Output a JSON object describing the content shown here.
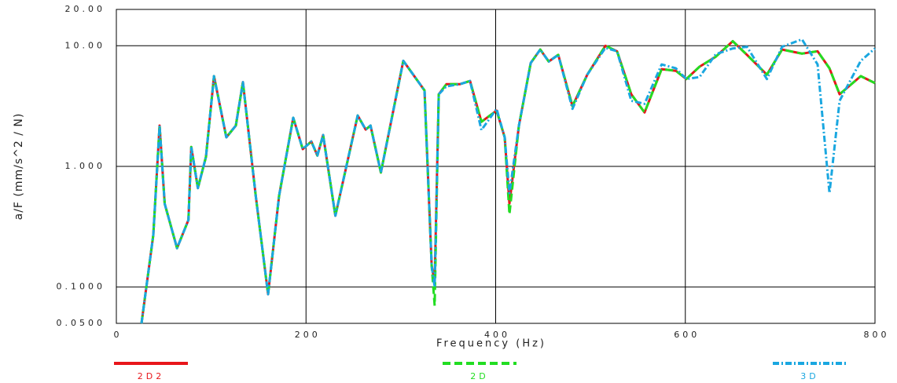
{
  "chart_data": {
    "type": "line",
    "xlabel": "Frequency (Hz)",
    "ylabel": "a/F (mm/s^2 / N)",
    "log_y": true,
    "grid": true,
    "legend": "bottom",
    "xlim": [
      0,
      800
    ],
    "xticks": [
      0,
      200,
      400,
      600,
      800
    ],
    "ylim": [
      0.05,
      20
    ],
    "yticks": [
      {
        "value": 0.05,
        "label": "0.0500"
      },
      {
        "value": 0.1,
        "label": "0.1000"
      },
      {
        "value": 1,
        "label": "1.000"
      },
      {
        "value": 10,
        "label": "10.00"
      },
      {
        "value": 20,
        "label": "20.00"
      }
    ],
    "x": [
      26.5,
      39,
      45.6,
      51,
      64,
      76,
      79,
      86,
      94.5,
      103,
      116,
      126,
      133.5,
      147,
      160,
      171.6,
      186.5,
      196.6,
      205.6,
      212,
      218,
      231,
      254.5,
      263,
      268,
      279,
      302.6,
      325,
      332.5,
      335.7,
      340,
      348,
      362,
      373,
      385,
      401,
      409.5,
      414.5,
      424.5,
      437,
      447,
      456,
      466,
      481,
      496.6,
      515.7,
      528,
      543,
      557,
      575,
      590,
      601,
      615,
      632,
      650,
      665,
      686,
      702,
      723,
      739.5,
      752,
      762.7,
      785,
      800
    ],
    "series": [
      {
        "name": "2D2",
        "color": "#e8161b",
        "dash": "none",
        "values": [
          0.05,
          0.27,
          2.18,
          0.49,
          0.21,
          0.36,
          1.45,
          0.66,
          1.2,
          5.6,
          1.74,
          2.18,
          5.0,
          0.57,
          0.087,
          0.57,
          2.53,
          1.39,
          1.61,
          1.23,
          1.82,
          0.39,
          2.64,
          2.02,
          2.18,
          0.89,
          7.5,
          4.26,
          0.15,
          0.11,
          3.96,
          4.8,
          4.8,
          5.1,
          2.34,
          2.9,
          1.74,
          0.49,
          2.18,
          7.2,
          9.3,
          7.4,
          8.4,
          3.16,
          5.75,
          10,
          9,
          3.96,
          2.8,
          6.4,
          6.2,
          5.3,
          6.7,
          8.1,
          10.9,
          8.4,
          5.75,
          9.3,
          8.6,
          9,
          6.5,
          3.96,
          5.6,
          4.9
        ]
      },
      {
        "name": "2D",
        "color": "#22dd22",
        "dash": "10,5",
        "values": [
          0.05,
          0.27,
          2.18,
          0.49,
          0.21,
          0.36,
          1.45,
          0.66,
          1.2,
          5.6,
          1.74,
          2.18,
          5.0,
          0.57,
          0.087,
          0.57,
          2.53,
          1.39,
          1.61,
          1.23,
          1.82,
          0.39,
          2.64,
          2.02,
          2.18,
          0.89,
          7.5,
          4.26,
          0.15,
          0.07,
          3.96,
          4.8,
          4.8,
          5.1,
          2.34,
          2.9,
          1.74,
          0.4,
          2.18,
          7.2,
          9.3,
          7.4,
          8.4,
          3.16,
          5.75,
          10,
          9,
          3.96,
          2.8,
          6.4,
          6.2,
          5.3,
          6.7,
          8.1,
          10.9,
          8.4,
          5.75,
          9.3,
          8.6,
          9,
          6.5,
          3.96,
          5.6,
          4.9
        ]
      },
      {
        "name": "3D",
        "color": "#1aa7e0",
        "dash": "8,3,2,3",
        "values": [
          0.05,
          0.27,
          2.18,
          0.49,
          0.21,
          0.36,
          1.45,
          0.66,
          1.2,
          5.6,
          1.74,
          2.18,
          5.0,
          0.57,
          0.087,
          0.57,
          2.53,
          1.39,
          1.61,
          1.23,
          1.82,
          0.39,
          2.64,
          2.02,
          2.18,
          0.89,
          7.5,
          4.26,
          0.15,
          0.1,
          3.96,
          4.6,
          4.8,
          5.1,
          2.0,
          3.0,
          1.74,
          0.6,
          2.18,
          7.2,
          9.3,
          7.4,
          8.4,
          3.0,
          5.75,
          9.6,
          9,
          3.5,
          3.3,
          7.0,
          6.5,
          5.3,
          5.5,
          8.5,
          9.5,
          9.8,
          5.3,
          9.8,
          11.3,
          7.0,
          0.6,
          3.5,
          7.5,
          9.5
        ]
      }
    ]
  }
}
